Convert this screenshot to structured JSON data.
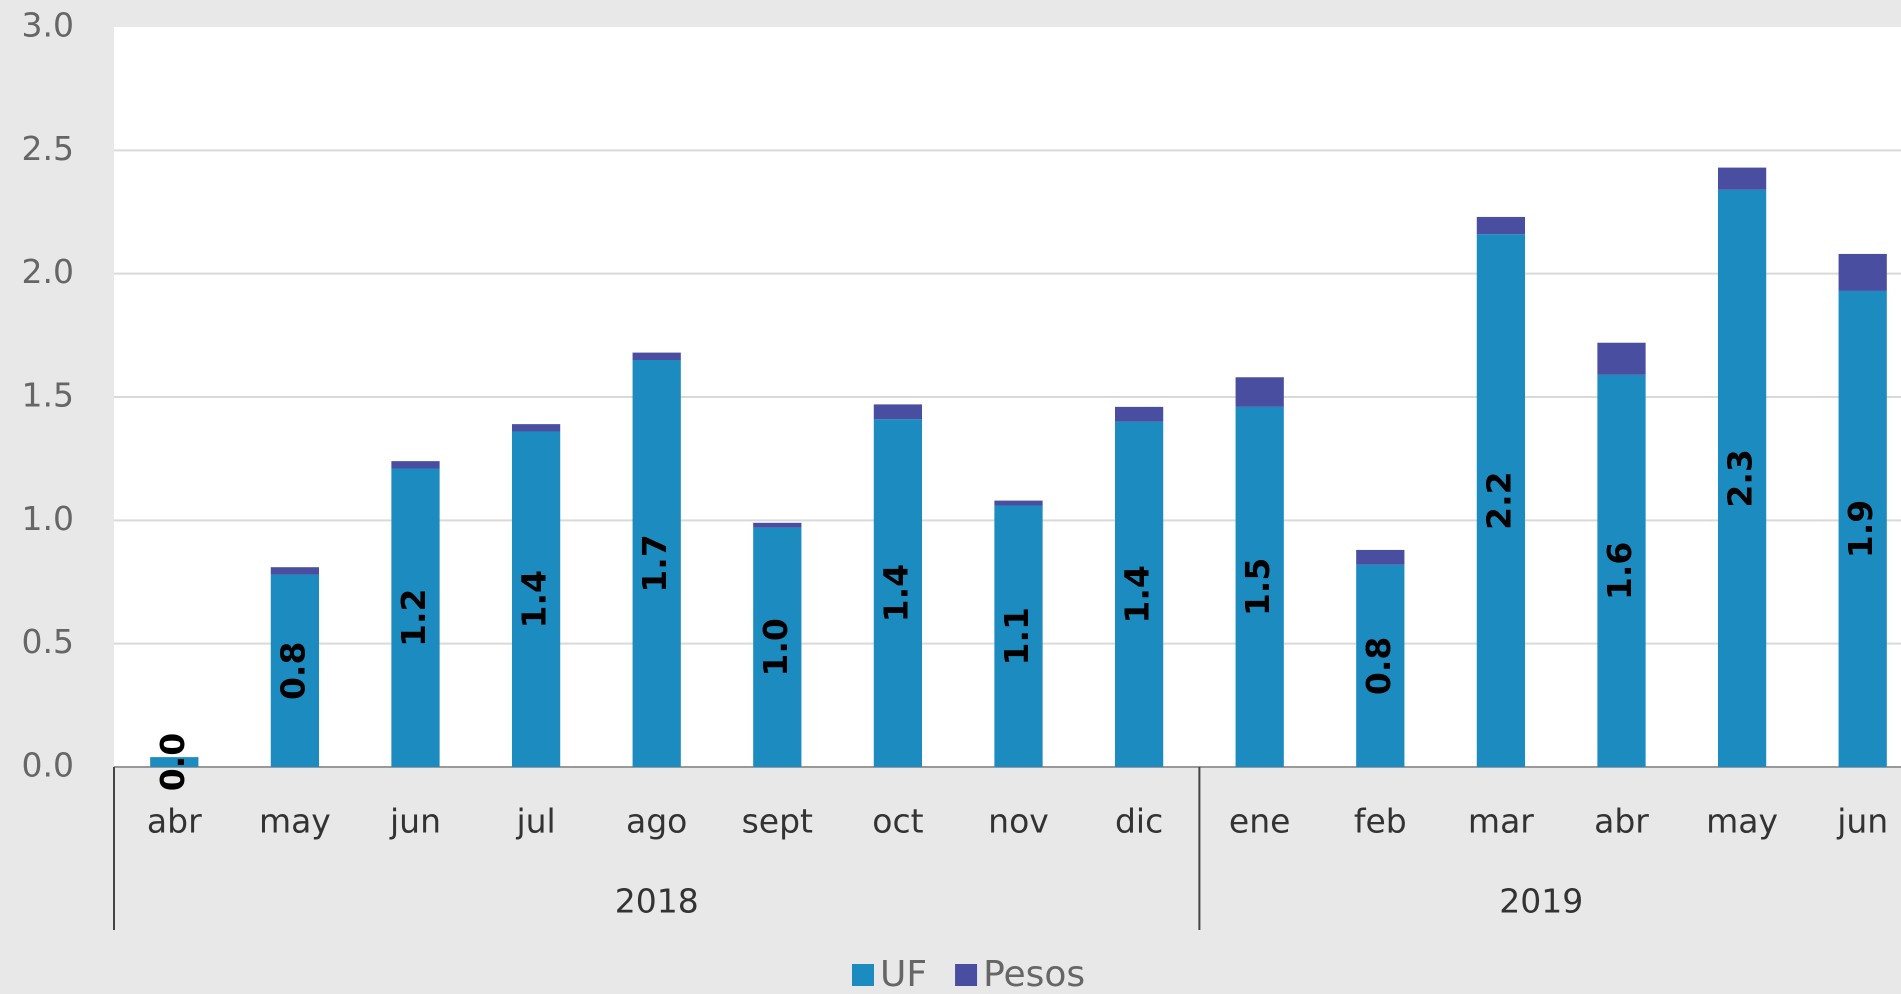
{
  "chart_data": {
    "type": "stacked_bar",
    "categories": [
      "abr",
      "may",
      "jun",
      "jul",
      "ago",
      "sept",
      "oct",
      "nov",
      "dic",
      "ene",
      "feb",
      "mar",
      "abr",
      "may",
      "jun"
    ],
    "category_groups": [
      "2018",
      "2018",
      "2018",
      "2018",
      "2018",
      "2018",
      "2018",
      "2018",
      "2018",
      "2019",
      "2019",
      "2019",
      "2019",
      "2019",
      "2019"
    ],
    "series": [
      {
        "name": "UF",
        "color": "#1b8bc0",
        "values": [
          0.04,
          0.78,
          1.21,
          1.36,
          1.65,
          0.97,
          1.41,
          1.06,
          1.4,
          1.46,
          0.82,
          2.16,
          1.59,
          2.34,
          1.93
        ],
        "value_labels": [
          "0.0",
          "0.8",
          "1.2",
          "1.4",
          "1.7",
          "1.0",
          "1.4",
          "1.1",
          "1.4",
          "1.5",
          "0.8",
          "2.2",
          "1.6",
          "2.3",
          "1.9"
        ]
      },
      {
        "name": "Pesos",
        "color": "#4a4ea0",
        "values": [
          0,
          0.03,
          0.03,
          0.03,
          0.03,
          0.02,
          0.06,
          0.02,
          0.06,
          0.12,
          0.06,
          0.07,
          0.13,
          0.09,
          0.15
        ]
      }
    ],
    "ylim": [
      0,
      3
    ],
    "yticks": [
      {
        "value": 0,
        "label": "0.0"
      },
      0.5,
      {
        "value": 1,
        "label": "1.0"
      },
      1.5,
      {
        "value": 2,
        "label": "2.0"
      },
      2.5,
      {
        "value": 3,
        "label": "3.0"
      }
    ],
    "grid": true
  }
}
